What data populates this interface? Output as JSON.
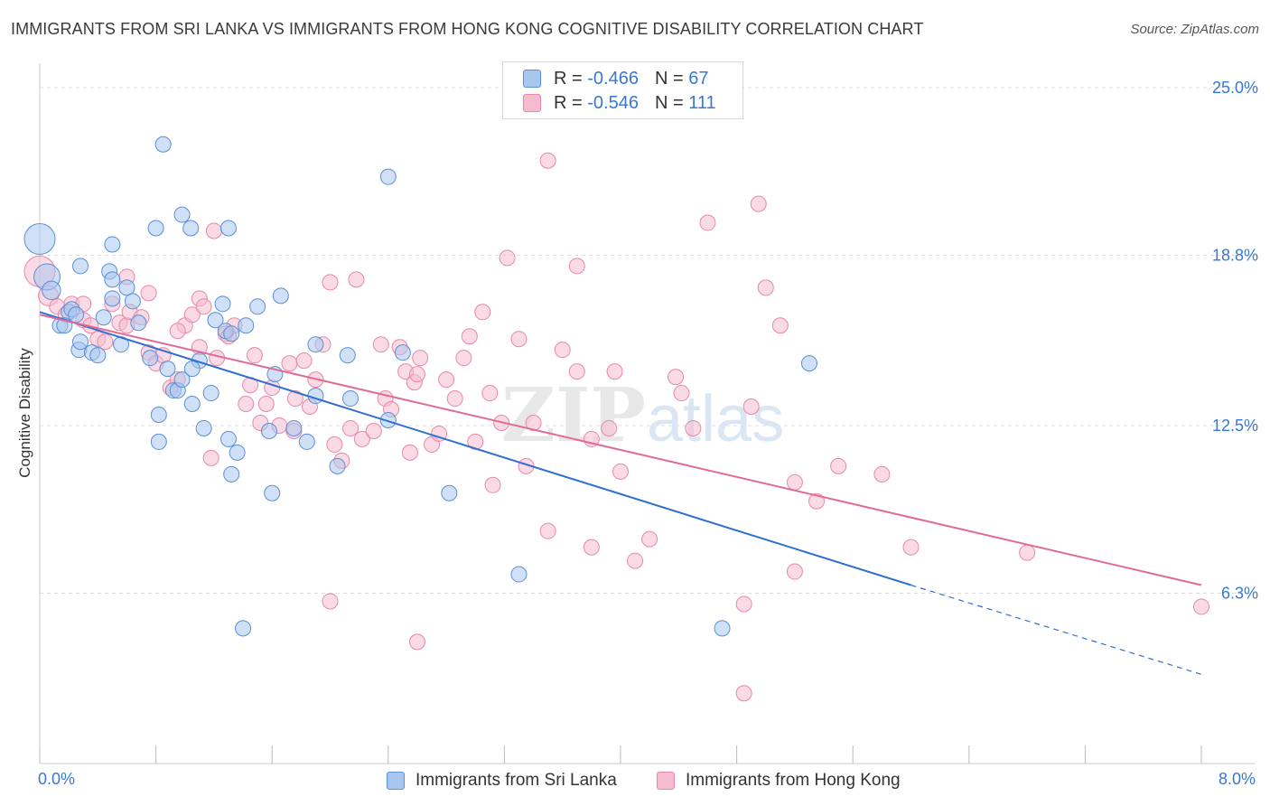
{
  "title": "IMMIGRANTS FROM SRI LANKA VS IMMIGRANTS FROM HONG KONG COGNITIVE DISABILITY CORRELATION CHART",
  "source": "Source: ZipAtlas.com",
  "watermark": "ZIPatlas",
  "colors": {
    "series1_fill": "#a9c6ef",
    "series1_stroke": "#5b8fd6",
    "series1_line": "#2f6fd0",
    "series2_fill": "#f6bccd",
    "series2_stroke": "#e889a6",
    "series2_line": "#e06b95",
    "axis_label": "#3a78d0",
    "grid": "#dddddd"
  },
  "legend": {
    "series1": {
      "r_label": "R =",
      "r_value": "-0.466",
      "n_label": "N =",
      "n_value": "67"
    },
    "series2": {
      "r_label": "R =",
      "r_value": "-0.546",
      "n_label": "N =",
      "n_value": "111"
    }
  },
  "bottom_legend": {
    "series1": "Immigrants from Sri Lanka",
    "series2": "Immigrants from Hong Kong"
  },
  "chart_data": {
    "type": "scatter",
    "title": "IMMIGRANTS FROM SRI LANKA VS IMMIGRANTS FROM HONG KONG COGNITIVE DISABILITY CORRELATION CHART",
    "xlabel": "",
    "ylabel": "Cognitive Disability",
    "x_unit": "%",
    "y_unit": "%",
    "xlim": [
      0,
      8
    ],
    "ylim": [
      0,
      25.9
    ],
    "x_tick_labels": [
      "0.0%",
      "8.0%"
    ],
    "y_ticks": [
      6.3,
      12.5,
      18.8,
      25.0
    ],
    "y_tick_labels": [
      "6.3%",
      "12.5%",
      "18.8%",
      "25.0%"
    ],
    "grid": true,
    "legend_position": "top-center",
    "series": [
      {
        "name": "Immigrants from Sri Lanka",
        "R": -0.466,
        "N": 67,
        "trend": {
          "x0": 0.0,
          "y0": 16.7,
          "x1": 6.0,
          "y1": 6.6,
          "dashed_to_x": 8.0,
          "dashed_to_y": 3.3
        },
        "points": [
          [
            0.0,
            19.4,
            2.0
          ],
          [
            0.05,
            18.0,
            1.7
          ],
          [
            0.08,
            17.5,
            1.2
          ],
          [
            0.14,
            16.2,
            1.0
          ],
          [
            0.2,
            16.7,
            1.0
          ],
          [
            0.17,
            16.2,
            1.0
          ],
          [
            0.22,
            16.8,
            1.0
          ],
          [
            0.25,
            16.6,
            1.0
          ],
          [
            0.27,
            15.3,
            1.0
          ],
          [
            0.28,
            15.6,
            1.0
          ],
          [
            0.36,
            15.2,
            1.0
          ],
          [
            0.4,
            15.1,
            1.0
          ],
          [
            0.44,
            16.5,
            1.0
          ],
          [
            0.5,
            17.2,
            1.0
          ],
          [
            0.6,
            17.6,
            1.0
          ],
          [
            0.64,
            17.1,
            1.0
          ],
          [
            0.68,
            16.3,
            1.0
          ],
          [
            0.76,
            15.0,
            1.0
          ],
          [
            0.82,
            12.9,
            1.0
          ],
          [
            0.82,
            11.9,
            1.0
          ],
          [
            0.88,
            14.6,
            1.0
          ],
          [
            0.92,
            13.8,
            1.0
          ],
          [
            0.95,
            13.8,
            1.0
          ],
          [
            0.98,
            14.2,
            1.0
          ],
          [
            1.05,
            13.3,
            1.0
          ],
          [
            1.1,
            14.9,
            1.0
          ],
          [
            1.13,
            12.4,
            1.0
          ],
          [
            1.18,
            13.7,
            1.0
          ],
          [
            1.21,
            16.4,
            1.0
          ],
          [
            1.26,
            17.0,
            1.0
          ],
          [
            1.28,
            16.0,
            1.0
          ],
          [
            1.32,
            15.9,
            1.0
          ],
          [
            1.36,
            11.5,
            1.0
          ],
          [
            1.42,
            16.2,
            1.0
          ],
          [
            1.5,
            16.9,
            1.0
          ],
          [
            1.58,
            12.3,
            1.0
          ],
          [
            1.62,
            14.4,
            1.0
          ],
          [
            1.66,
            17.3,
            1.0
          ],
          [
            1.75,
            12.4,
            1.0
          ],
          [
            1.84,
            11.9,
            1.0
          ],
          [
            1.9,
            15.5,
            1.0
          ],
          [
            1.9,
            13.6,
            1.0
          ],
          [
            2.05,
            11.0,
            1.0
          ],
          [
            2.12,
            15.1,
            1.0
          ],
          [
            2.14,
            13.5,
            1.0
          ],
          [
            2.4,
            21.7,
            1.0
          ],
          [
            2.4,
            12.7,
            1.0
          ],
          [
            2.5,
            15.2,
            1.0
          ],
          [
            2.82,
            10.0,
            1.0
          ],
          [
            3.3,
            7.0,
            1.0
          ],
          [
            1.4,
            5.0,
            1.0
          ],
          [
            4.7,
            5.0,
            1.0
          ],
          [
            5.3,
            14.8,
            1.0
          ],
          [
            0.5,
            19.2,
            1.0
          ],
          [
            0.8,
            19.8,
            1.0
          ],
          [
            0.85,
            22.9,
            1.0
          ],
          [
            1.04,
            19.8,
            1.0
          ],
          [
            1.3,
            19.8,
            1.0
          ],
          [
            1.05,
            14.6,
            1.0
          ],
          [
            0.48,
            18.2,
            1.0
          ],
          [
            0.5,
            17.9,
            1.0
          ],
          [
            1.32,
            10.7,
            1.0
          ],
          [
            1.6,
            10.0,
            1.0
          ],
          [
            0.98,
            20.3,
            1.0
          ],
          [
            1.3,
            12.0,
            1.0
          ],
          [
            0.28,
            18.4,
            1.0
          ],
          [
            0.56,
            15.5,
            1.0
          ]
        ]
      },
      {
        "name": "Immigrants from Hong Kong",
        "R": -0.546,
        "N": 111,
        "trend": {
          "x0": 0.0,
          "y0": 16.6,
          "x1": 8.0,
          "y1": 6.6
        },
        "points": [
          [
            0.0,
            18.2,
            2.0
          ],
          [
            0.06,
            17.3,
            1.3
          ],
          [
            0.12,
            16.9,
            1.0
          ],
          [
            0.18,
            16.6,
            1.0
          ],
          [
            0.22,
            17.0,
            1.0
          ],
          [
            0.3,
            16.4,
            1.0
          ],
          [
            0.35,
            16.2,
            1.0
          ],
          [
            0.4,
            15.7,
            1.0
          ],
          [
            0.45,
            15.6,
            1.0
          ],
          [
            0.5,
            17.0,
            1.0
          ],
          [
            0.55,
            16.3,
            1.0
          ],
          [
            0.6,
            16.2,
            1.0
          ],
          [
            0.62,
            16.7,
            1.0
          ],
          [
            0.7,
            16.5,
            1.0
          ],
          [
            0.75,
            15.2,
            1.0
          ],
          [
            0.8,
            14.8,
            1.0
          ],
          [
            0.85,
            15.1,
            1.0
          ],
          [
            0.9,
            13.9,
            1.0
          ],
          [
            0.95,
            14.2,
            1.0
          ],
          [
            1.0,
            16.2,
            1.0
          ],
          [
            1.05,
            16.6,
            1.0
          ],
          [
            1.1,
            17.2,
            1.0
          ],
          [
            1.13,
            16.9,
            1.0
          ],
          [
            1.18,
            11.3,
            1.0
          ],
          [
            1.22,
            15.0,
            1.0
          ],
          [
            1.28,
            15.9,
            1.0
          ],
          [
            1.34,
            16.2,
            1.0
          ],
          [
            1.42,
            13.3,
            1.0
          ],
          [
            1.48,
            15.1,
            1.0
          ],
          [
            1.52,
            12.6,
            1.0
          ],
          [
            1.56,
            13.3,
            1.0
          ],
          [
            1.6,
            13.9,
            1.0
          ],
          [
            1.65,
            12.5,
            1.0
          ],
          [
            1.72,
            14.8,
            1.0
          ],
          [
            1.76,
            13.5,
            1.0
          ],
          [
            1.82,
            14.9,
            1.0
          ],
          [
            1.86,
            13.2,
            1.0
          ],
          [
            1.9,
            14.2,
            1.0
          ],
          [
            1.95,
            15.5,
            1.0
          ],
          [
            2.0,
            17.8,
            1.0
          ],
          [
            2.03,
            11.8,
            1.0
          ],
          [
            2.08,
            11.2,
            1.0
          ],
          [
            2.14,
            12.4,
            1.0
          ],
          [
            2.18,
            17.9,
            1.0
          ],
          [
            2.22,
            12.0,
            1.0
          ],
          [
            2.3,
            12.3,
            1.0
          ],
          [
            2.35,
            15.5,
            1.0
          ],
          [
            2.38,
            13.5,
            1.0
          ],
          [
            2.42,
            13.1,
            1.0
          ],
          [
            2.48,
            15.4,
            1.0
          ],
          [
            2.52,
            14.5,
            1.0
          ],
          [
            2.58,
            14.1,
            1.0
          ],
          [
            2.62,
            15.0,
            1.0
          ],
          [
            2.7,
            11.8,
            1.0
          ],
          [
            2.75,
            12.2,
            1.0
          ],
          [
            2.8,
            14.2,
            1.0
          ],
          [
            2.86,
            13.5,
            1.0
          ],
          [
            2.92,
            15.0,
            1.0
          ],
          [
            2.96,
            15.8,
            1.0
          ],
          [
            3.0,
            11.9,
            1.0
          ],
          [
            3.05,
            16.7,
            1.0
          ],
          [
            3.12,
            10.3,
            1.0
          ],
          [
            3.18,
            12.6,
            1.0
          ],
          [
            3.22,
            18.7,
            1.0
          ],
          [
            3.3,
            15.7,
            1.0
          ],
          [
            3.35,
            11.0,
            1.0
          ],
          [
            3.4,
            12.6,
            1.0
          ],
          [
            3.5,
            8.6,
            1.0
          ],
          [
            3.6,
            15.3,
            1.0
          ],
          [
            3.7,
            14.5,
            1.0
          ],
          [
            3.8,
            12.0,
            1.0
          ],
          [
            3.92,
            12.4,
            1.0
          ],
          [
            3.96,
            14.5,
            1.0
          ],
          [
            4.0,
            10.8,
            1.0
          ],
          [
            4.1,
            7.5,
            1.0
          ],
          [
            4.2,
            8.3,
            1.0
          ],
          [
            4.38,
            14.3,
            1.0
          ],
          [
            4.42,
            13.7,
            1.0
          ],
          [
            4.5,
            12.4,
            1.0
          ],
          [
            4.9,
            13.2,
            1.0
          ],
          [
            5.0,
            17.6,
            1.0
          ],
          [
            5.1,
            16.2,
            1.0
          ],
          [
            5.2,
            10.4,
            1.0
          ],
          [
            5.35,
            9.7,
            1.0
          ],
          [
            5.5,
            11.0,
            1.0
          ],
          [
            5.8,
            10.7,
            1.0
          ],
          [
            6.0,
            8.0,
            1.0
          ],
          [
            6.8,
            7.8,
            1.0
          ],
          [
            8.0,
            5.8,
            1.0
          ],
          [
            4.85,
            5.9,
            1.0
          ],
          [
            5.2,
            7.1,
            1.0
          ],
          [
            4.85,
            2.6,
            1.0
          ],
          [
            2.6,
            4.5,
            1.0
          ],
          [
            2.0,
            6.0,
            1.0
          ],
          [
            3.5,
            22.3,
            1.0
          ],
          [
            4.6,
            20.0,
            1.0
          ],
          [
            4.95,
            20.7,
            1.0
          ],
          [
            3.7,
            18.4,
            1.0
          ],
          [
            1.2,
            19.7,
            1.0
          ],
          [
            0.6,
            18.0,
            1.0
          ],
          [
            1.3,
            15.8,
            1.0
          ],
          [
            1.75,
            12.3,
            1.0
          ],
          [
            2.55,
            11.5,
            1.0
          ],
          [
            0.95,
            16.0,
            1.0
          ],
          [
            1.45,
            14.0,
            1.0
          ],
          [
            3.1,
            13.7,
            1.0
          ],
          [
            3.8,
            8.0,
            1.0
          ],
          [
            0.3,
            17.0,
            1.0
          ],
          [
            0.75,
            17.4,
            1.0
          ],
          [
            1.1,
            15.4,
            1.0
          ],
          [
            2.6,
            14.4,
            1.0
          ]
        ]
      }
    ]
  }
}
